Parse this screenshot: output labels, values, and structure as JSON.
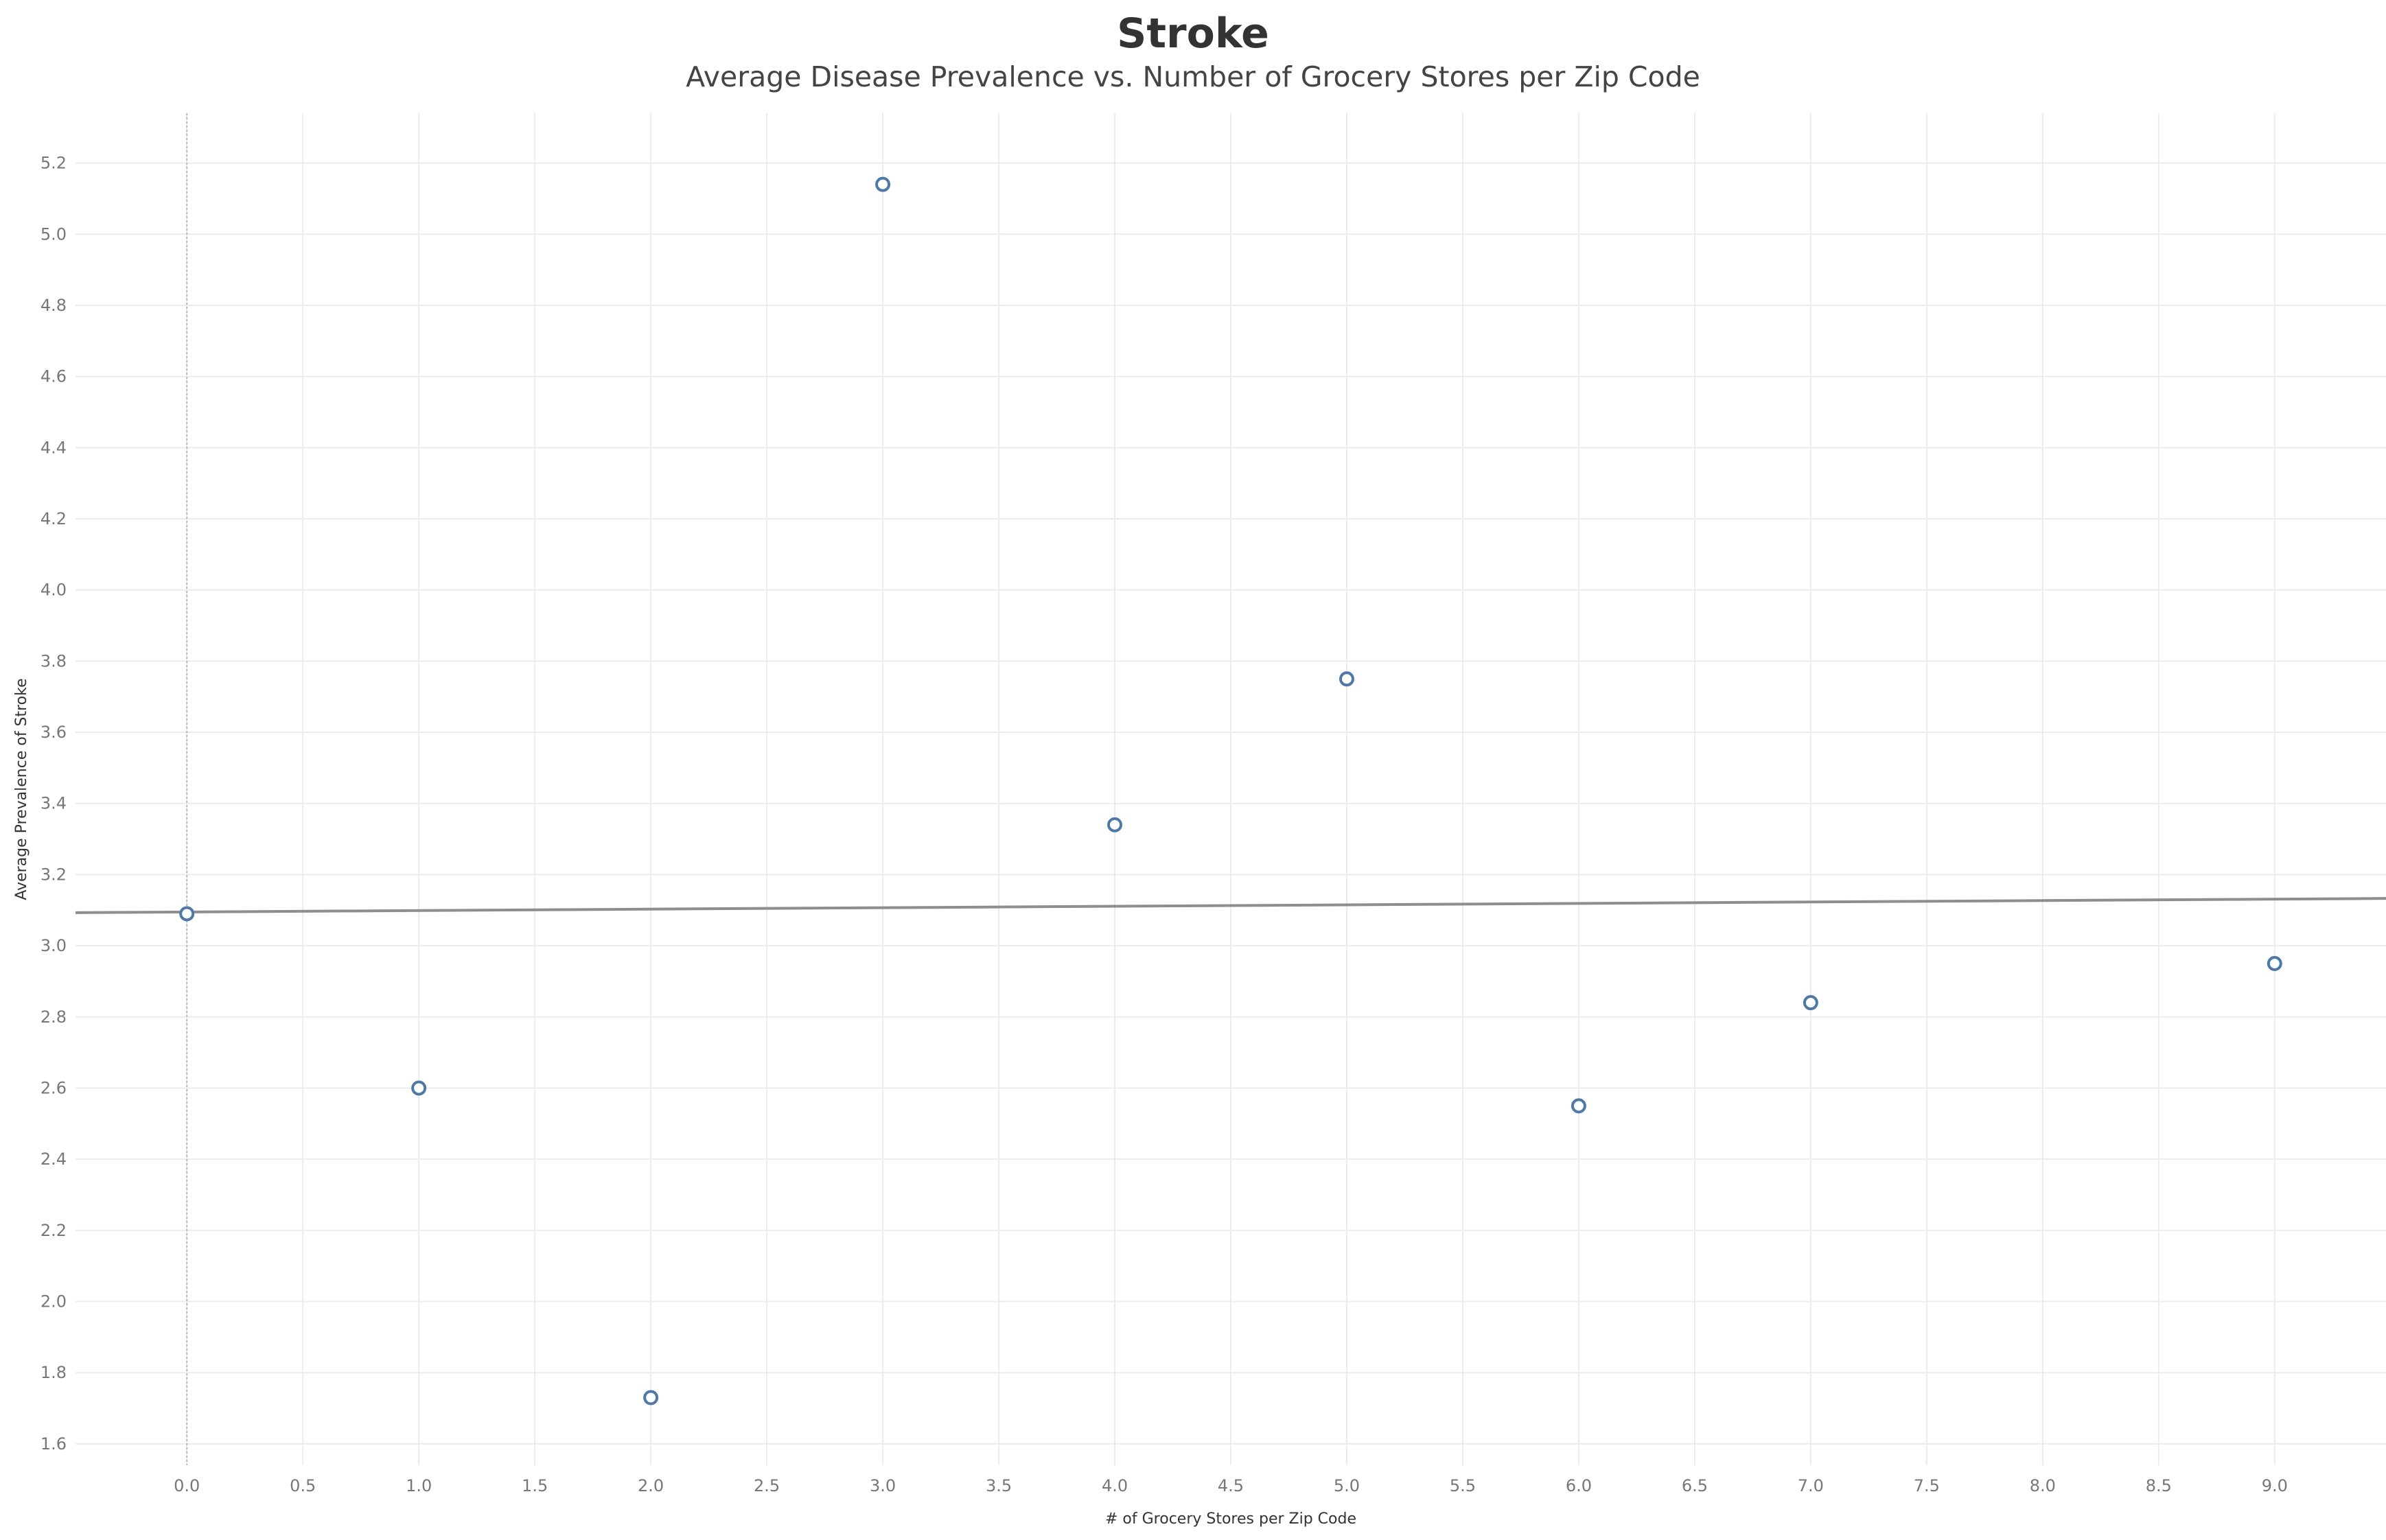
{
  "chart_data": {
    "type": "scatter",
    "title": "Stroke",
    "subtitle": "Average Disease Prevalence vs. Number of Grocery Stores per Zip Code",
    "xlabel": "# of Grocery Stores per Zip Code",
    "ylabel": "Average Prevalence of Stroke",
    "xlim": [
      -0.48,
      9.48
    ],
    "ylim": [
      1.54,
      5.34
    ],
    "x_ticks": [
      "0.0",
      "0.5",
      "1.0",
      "1.5",
      "2.0",
      "2.5",
      "3.0",
      "3.5",
      "4.0",
      "4.5",
      "5.0",
      "5.5",
      "6.0",
      "6.5",
      "7.0",
      "7.5",
      "8.0",
      "8.5",
      "9.0"
    ],
    "y_ticks": [
      "1.6",
      "1.8",
      "2.0",
      "2.2",
      "2.4",
      "2.6",
      "2.8",
      "3.0",
      "3.2",
      "3.4",
      "3.6",
      "3.8",
      "4.0",
      "4.2",
      "4.4",
      "4.6",
      "4.8",
      "5.0",
      "5.2"
    ],
    "grid": true,
    "points": [
      {
        "x": 0,
        "y": 3.09
      },
      {
        "x": 1,
        "y": 2.6
      },
      {
        "x": 2,
        "y": 1.73
      },
      {
        "x": 3,
        "y": 5.14
      },
      {
        "x": 4,
        "y": 3.34
      },
      {
        "x": 5,
        "y": 3.75
      },
      {
        "x": 6,
        "y": 2.55
      },
      {
        "x": 7,
        "y": 2.84
      },
      {
        "x": 9,
        "y": 2.95
      }
    ],
    "trend_line": {
      "x": [
        -0.48,
        9.48
      ],
      "y": [
        3.093,
        3.133
      ]
    },
    "colors": {
      "marker": "#4e79a7",
      "trend": "#8e8e8e",
      "grid": "#ececec",
      "zero_line": "#b8b8b8"
    }
  }
}
